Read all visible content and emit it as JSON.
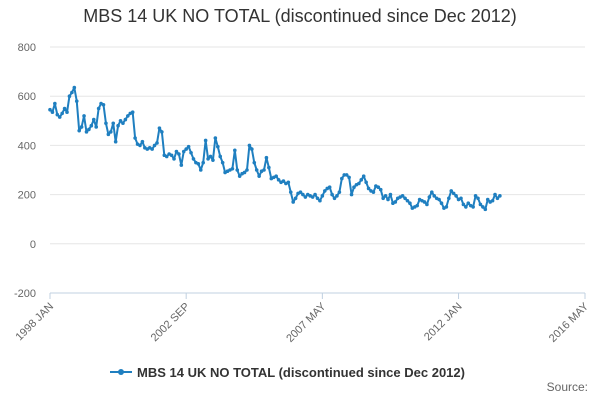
{
  "chart_data": {
    "type": "line",
    "title": "MBS 14 UK NO TOTAL (discontinued since Dec 2012)",
    "xlabel": "",
    "ylabel": "",
    "ylim": [
      -200,
      800
    ],
    "yticks": [
      -200,
      0,
      200,
      400,
      600,
      800
    ],
    "xlim": [
      "1998-01",
      "2016-05"
    ],
    "xticks": [
      {
        "label": "1998 JAN",
        "date": "1998-01"
      },
      {
        "label": "2002 SEP",
        "date": "2002-09"
      },
      {
        "label": "2007 MAY",
        "date": "2007-05"
      },
      {
        "label": "2012 JAN",
        "date": "2012-01"
      },
      {
        "label": "2016 MAY",
        "date": "2016-05"
      }
    ],
    "grid": true,
    "legend_position": "bottom",
    "series": [
      {
        "name": "MBS 14 UK NO TOTAL (discontinued since Dec 2012)",
        "color": "#1f7fc0",
        "marker": "circle",
        "points": [
          [
            "1998-01",
            545
          ],
          [
            "1998-02",
            535
          ],
          [
            "1998-03",
            570
          ],
          [
            "1998-04",
            525
          ],
          [
            "1998-05",
            515
          ],
          [
            "1998-06",
            530
          ],
          [
            "1998-07",
            550
          ],
          [
            "1998-08",
            535
          ],
          [
            "1998-09",
            600
          ],
          [
            "1998-10",
            615
          ],
          [
            "1998-11",
            635
          ],
          [
            "1998-12",
            580
          ],
          [
            "1999-01",
            460
          ],
          [
            "1999-02",
            475
          ],
          [
            "1999-03",
            520
          ],
          [
            "1999-04",
            455
          ],
          [
            "1999-05",
            465
          ],
          [
            "1999-06",
            480
          ],
          [
            "1999-07",
            505
          ],
          [
            "1999-08",
            475
          ],
          [
            "1999-09",
            550
          ],
          [
            "1999-10",
            570
          ],
          [
            "1999-11",
            565
          ],
          [
            "1999-12",
            490
          ],
          [
            "2000-01",
            445
          ],
          [
            "2000-02",
            455
          ],
          [
            "2000-03",
            490
          ],
          [
            "2000-04",
            415
          ],
          [
            "2000-05",
            480
          ],
          [
            "2000-06",
            500
          ],
          [
            "2000-07",
            490
          ],
          [
            "2000-08",
            505
          ],
          [
            "2000-09",
            520
          ],
          [
            "2000-10",
            530
          ],
          [
            "2000-11",
            535
          ],
          [
            "2000-12",
            430
          ],
          [
            "2001-01",
            405
          ],
          [
            "2001-02",
            400
          ],
          [
            "2001-03",
            415
          ],
          [
            "2001-04",
            390
          ],
          [
            "2001-05",
            385
          ],
          [
            "2001-06",
            390
          ],
          [
            "2001-07",
            385
          ],
          [
            "2001-08",
            400
          ],
          [
            "2001-09",
            410
          ],
          [
            "2001-10",
            470
          ],
          [
            "2001-11",
            455
          ],
          [
            "2001-12",
            360
          ],
          [
            "2002-01",
            355
          ],
          [
            "2002-02",
            365
          ],
          [
            "2002-03",
            360
          ],
          [
            "2002-04",
            345
          ],
          [
            "2002-05",
            375
          ],
          [
            "2002-06",
            365
          ],
          [
            "2002-07",
            320
          ],
          [
            "2002-08",
            375
          ],
          [
            "2002-09",
            385
          ],
          [
            "2002-10",
            395
          ],
          [
            "2002-11",
            370
          ],
          [
            "2002-12",
            345
          ],
          [
            "2003-01",
            330
          ],
          [
            "2003-02",
            325
          ],
          [
            "2003-03",
            300
          ],
          [
            "2003-04",
            330
          ],
          [
            "2003-05",
            420
          ],
          [
            "2003-06",
            345
          ],
          [
            "2003-07",
            355
          ],
          [
            "2003-08",
            340
          ],
          [
            "2003-09",
            430
          ],
          [
            "2003-10",
            395
          ],
          [
            "2003-11",
            355
          ],
          [
            "2003-12",
            330
          ],
          [
            "2004-01",
            290
          ],
          [
            "2004-02",
            295
          ],
          [
            "2004-03",
            300
          ],
          [
            "2004-04",
            305
          ],
          [
            "2004-05",
            380
          ],
          [
            "2004-06",
            300
          ],
          [
            "2004-07",
            275
          ],
          [
            "2004-08",
            285
          ],
          [
            "2004-09",
            290
          ],
          [
            "2004-10",
            300
          ],
          [
            "2004-11",
            400
          ],
          [
            "2004-12",
            385
          ],
          [
            "2005-01",
            330
          ],
          [
            "2005-02",
            300
          ],
          [
            "2005-03",
            275
          ],
          [
            "2005-04",
            295
          ],
          [
            "2005-05",
            300
          ],
          [
            "2005-06",
            350
          ],
          [
            "2005-07",
            310
          ],
          [
            "2005-08",
            265
          ],
          [
            "2005-09",
            270
          ],
          [
            "2005-10",
            275
          ],
          [
            "2005-11",
            260
          ],
          [
            "2005-12",
            250
          ],
          [
            "2006-01",
            255
          ],
          [
            "2006-02",
            245
          ],
          [
            "2006-03",
            250
          ],
          [
            "2006-04",
            210
          ],
          [
            "2006-05",
            170
          ],
          [
            "2006-06",
            185
          ],
          [
            "2006-07",
            205
          ],
          [
            "2006-08",
            210
          ],
          [
            "2006-09",
            200
          ],
          [
            "2006-10",
            190
          ],
          [
            "2006-11",
            200
          ],
          [
            "2006-12",
            195
          ],
          [
            "2007-01",
            190
          ],
          [
            "2007-02",
            200
          ],
          [
            "2007-03",
            185
          ],
          [
            "2007-04",
            175
          ],
          [
            "2007-05",
            195
          ],
          [
            "2007-06",
            215
          ],
          [
            "2007-07",
            225
          ],
          [
            "2007-08",
            230
          ],
          [
            "2007-09",
            200
          ],
          [
            "2007-10",
            185
          ],
          [
            "2007-11",
            195
          ],
          [
            "2007-12",
            210
          ],
          [
            "2008-01",
            265
          ],
          [
            "2008-02",
            280
          ],
          [
            "2008-03",
            280
          ],
          [
            "2008-04",
            270
          ],
          [
            "2008-05",
            200
          ],
          [
            "2008-06",
            230
          ],
          [
            "2008-07",
            240
          ],
          [
            "2008-08",
            245
          ],
          [
            "2008-09",
            260
          ],
          [
            "2008-10",
            275
          ],
          [
            "2008-11",
            250
          ],
          [
            "2008-12",
            225
          ],
          [
            "2009-01",
            215
          ],
          [
            "2009-02",
            210
          ],
          [
            "2009-03",
            235
          ],
          [
            "2009-04",
            230
          ],
          [
            "2009-05",
            220
          ],
          [
            "2009-06",
            185
          ],
          [
            "2009-07",
            195
          ],
          [
            "2009-08",
            180
          ],
          [
            "2009-09",
            200
          ],
          [
            "2009-10",
            165
          ],
          [
            "2009-11",
            170
          ],
          [
            "2009-12",
            185
          ],
          [
            "2010-01",
            190
          ],
          [
            "2010-02",
            195
          ],
          [
            "2010-03",
            185
          ],
          [
            "2010-04",
            175
          ],
          [
            "2010-05",
            165
          ],
          [
            "2010-06",
            145
          ],
          [
            "2010-07",
            150
          ],
          [
            "2010-08",
            155
          ],
          [
            "2010-09",
            180
          ],
          [
            "2010-10",
            175
          ],
          [
            "2010-11",
            170
          ],
          [
            "2010-12",
            160
          ],
          [
            "2011-01",
            190
          ],
          [
            "2011-02",
            210
          ],
          [
            "2011-03",
            195
          ],
          [
            "2011-04",
            185
          ],
          [
            "2011-05",
            180
          ],
          [
            "2011-06",
            165
          ],
          [
            "2011-07",
            145
          ],
          [
            "2011-08",
            150
          ],
          [
            "2011-09",
            185
          ],
          [
            "2011-10",
            215
          ],
          [
            "2011-11",
            205
          ],
          [
            "2011-12",
            195
          ],
          [
            "2012-01",
            180
          ],
          [
            "2012-02",
            185
          ],
          [
            "2012-03",
            160
          ],
          [
            "2012-04",
            150
          ],
          [
            "2012-05",
            165
          ],
          [
            "2012-06",
            155
          ],
          [
            "2012-07",
            150
          ],
          [
            "2012-08",
            195
          ],
          [
            "2012-09",
            185
          ],
          [
            "2012-10",
            160
          ],
          [
            "2012-11",
            150
          ],
          [
            "2012-12",
            140
          ],
          [
            "2013-01",
            180
          ],
          [
            "2013-02",
            170
          ],
          [
            "2013-03",
            175
          ],
          [
            "2013-04",
            200
          ],
          [
            "2013-05",
            185
          ],
          [
            "2013-06",
            195
          ]
        ]
      }
    ]
  },
  "legend": {
    "label": "MBS 14 UK NO TOTAL (discontinued since Dec 2012)"
  },
  "footer": {
    "source_label": "Source:"
  }
}
